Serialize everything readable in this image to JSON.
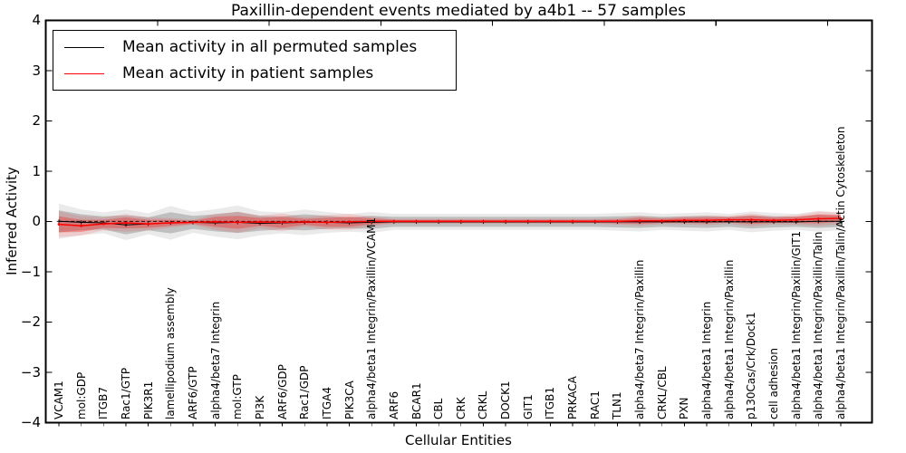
{
  "title": "Paxillin-dependent events mediated by a4b1 -- 57 samples",
  "legend": {
    "items": [
      {
        "label": "Mean activity in all permuted samples",
        "color": "#000000"
      },
      {
        "label": "Mean activity in patient samples",
        "color": "#ff0000"
      }
    ]
  },
  "chart_data": {
    "type": "line",
    "title": "Paxillin-dependent events mediated by a4b1 -- 57 samples",
    "xlabel": "Cellular Entities",
    "ylabel": "Inferred Activity",
    "ylim": [
      -4,
      4
    ],
    "ytick_values": [
      4,
      3,
      2,
      1,
      0,
      -1,
      -2,
      -3,
      -4
    ],
    "ytick_labels": [
      "4",
      "3",
      "2",
      "1",
      "0",
      "−1",
      "−2",
      "−3",
      "−4"
    ],
    "xticks_major_values": [
      0,
      5,
      10,
      15,
      20,
      25,
      30,
      35
    ],
    "grid": false,
    "legend_position": "upper left",
    "categories": [
      "VCAM1",
      "mol:GDP",
      "ITGB7",
      "Rac1/GTP",
      "PIK3R1",
      "lamellipodium assembly",
      "ARF6/GTP",
      "alpha4/beta7 Integrin",
      "mol:GTP",
      "PI3K",
      "ARF6/GDP",
      "Rac1/GDP",
      "ITGA4",
      "PIK3CA",
      "alpha4/beta1 Integrin/Paxillin/VCAM1",
      "ARF6",
      "BCAR1",
      "CBL",
      "CRK",
      "CRKL",
      "DOCK1",
      "GIT1",
      "ITGB1",
      "PRKACA",
      "RAC1",
      "TLN1",
      "alpha4/beta7 Integrin/Paxillin",
      "CRKL/CBL",
      "PXN",
      "alpha4/beta1 Integrin",
      "alpha4/beta1 Integrin/Paxillin",
      "p130Cas/Crk/Dock1",
      "cell adhesion",
      "alpha4/beta1 Integrin/Paxillin/GIT1",
      "alpha4/beta1 Integrin/Paxillin/Talin",
      "alpha4/beta1 Integrin/Paxillin/Talin/Actin Cytoskeleton"
    ],
    "series": [
      {
        "name": "Mean activity in all permuted samples",
        "color": "#000000",
        "marker": "plus",
        "values": [
          0.0,
          -0.02,
          -0.03,
          -0.07,
          -0.05,
          -0.03,
          -0.02,
          -0.03,
          -0.02,
          -0.04,
          -0.03,
          -0.02,
          -0.02,
          -0.03,
          -0.02,
          -0.01,
          -0.01,
          -0.01,
          -0.01,
          -0.01,
          -0.01,
          -0.01,
          -0.01,
          -0.01,
          -0.01,
          -0.01,
          -0.01,
          -0.01,
          -0.01,
          -0.01,
          -0.01,
          -0.01,
          -0.01,
          -0.01,
          0.0,
          0.0
        ],
        "band_halfwidth": [
          0.22,
          0.16,
          0.13,
          0.19,
          0.13,
          0.21,
          0.13,
          0.17,
          0.21,
          0.15,
          0.13,
          0.16,
          0.13,
          0.11,
          0.13,
          0.1,
          0.1,
          0.1,
          0.1,
          0.1,
          0.1,
          0.1,
          0.1,
          0.1,
          0.1,
          0.11,
          0.12,
          0.1,
          0.11,
          0.12,
          0.1,
          0.13,
          0.11,
          0.1,
          0.13,
          0.11
        ],
        "band_color": "rgba(0,0,0,0.18)"
      },
      {
        "name": "Mean activity in patient samples",
        "color": "#ff0000",
        "marker": "dot",
        "values": [
          -0.06,
          -0.09,
          -0.05,
          -0.03,
          -0.05,
          -0.03,
          -0.02,
          -0.01,
          -0.02,
          -0.01,
          -0.02,
          -0.01,
          -0.02,
          -0.01,
          0.0,
          0.0,
          0.0,
          0.0,
          0.0,
          0.0,
          0.0,
          0.0,
          0.0,
          0.0,
          0.0,
          0.0,
          0.01,
          0.01,
          0.02,
          0.02,
          0.03,
          0.03,
          0.02,
          0.03,
          0.05,
          0.06
        ],
        "band_halfwidth": [
          0.16,
          0.12,
          0.08,
          0.11,
          0.08,
          0.06,
          0.03,
          0.1,
          0.13,
          0.08,
          0.11,
          0.06,
          0.09,
          0.1,
          0.06,
          0.03,
          0.03,
          0.03,
          0.03,
          0.03,
          0.03,
          0.03,
          0.03,
          0.03,
          0.03,
          0.04,
          0.06,
          0.04,
          0.05,
          0.06,
          0.05,
          0.08,
          0.05,
          0.06,
          0.09,
          0.07
        ],
        "band_color": "rgba(255,0,0,0.28)"
      }
    ],
    "zero_line": {
      "style": "dashed",
      "color": "#000000",
      "value": 0
    }
  }
}
